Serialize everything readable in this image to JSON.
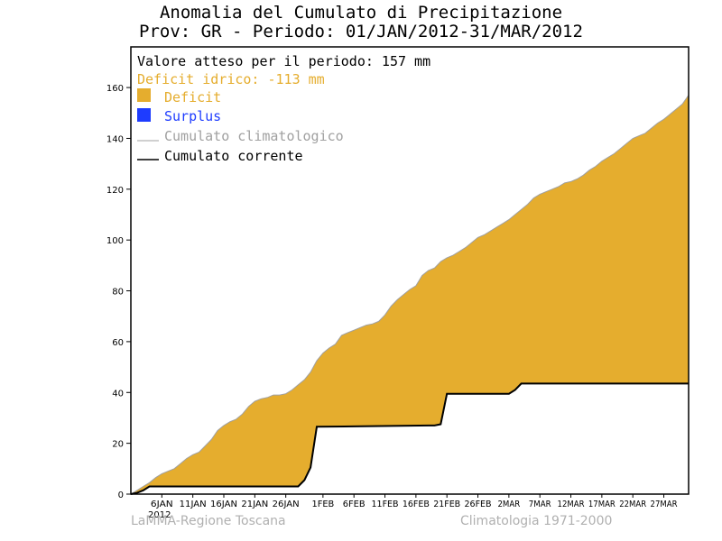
{
  "chart_data": {
    "type": "area",
    "title": "Anomalia del Cumulato di Precipitazione",
    "subtitle": "Prov: GR - Periodo: 01/JAN/2012-31/MAR/2012",
    "ylim": [
      0,
      176
    ],
    "yticks": [
      0,
      20,
      40,
      60,
      80,
      100,
      120,
      140,
      160
    ],
    "xlim": [
      1,
      91
    ],
    "xticks": [
      {
        "day": 6,
        "label": "6JAN"
      },
      {
        "day": 11,
        "label": "11JAN"
      },
      {
        "day": 16,
        "label": "16JAN"
      },
      {
        "day": 21,
        "label": "21JAN"
      },
      {
        "day": 26,
        "label": "26JAN"
      },
      {
        "day": 32,
        "label": "1FEB"
      },
      {
        "day": 37,
        "label": "6FEB"
      },
      {
        "day": 42,
        "label": "11FEB"
      },
      {
        "day": 47,
        "label": "16FEB"
      },
      {
        "day": 52,
        "label": "21FEB"
      },
      {
        "day": 57,
        "label": "26FEB"
      },
      {
        "day": 62,
        "label": "2MAR"
      },
      {
        "day": 67,
        "label": "7MAR"
      },
      {
        "day": 72,
        "label": "12MAR"
      },
      {
        "day": 77,
        "label": "17MAR"
      },
      {
        "day": 82,
        "label": "22MAR"
      },
      {
        "day": 87,
        "label": "27MAR"
      }
    ],
    "year_label": "2012",
    "legend": {
      "expected": "Valore atteso per il periodo: 157 mm",
      "deficit": "Deficit idrico: -113 mm",
      "deficit_label": "Deficit",
      "surplus_label": "Surplus",
      "climatological_label": "Cumulato climatologico",
      "current_label": "Cumulato corrente",
      "placement": "top-left"
    },
    "colors": {
      "deficit": "#e5ad2e",
      "deficit_text": "#e5ad2e",
      "surplus": "#1e3cff",
      "surplus_text": "#1e3cff",
      "climatological": "#a0a0a0",
      "current": "#000000",
      "muted_text": "#b0b0b0"
    },
    "series": [
      {
        "name": "Cumulato climatologico",
        "x": [
          1,
          2,
          3,
          4,
          5,
          6,
          7,
          8,
          9,
          10,
          11,
          12,
          13,
          14,
          15,
          16,
          17,
          18,
          19,
          20,
          21,
          22,
          23,
          24,
          25,
          26,
          27,
          28,
          29,
          30,
          31,
          32,
          33,
          34,
          35,
          36,
          37,
          38,
          39,
          40,
          41,
          42,
          43,
          44,
          45,
          46,
          47,
          48,
          49,
          50,
          51,
          52,
          53,
          54,
          55,
          56,
          57,
          58,
          59,
          60,
          61,
          62,
          63,
          64,
          65,
          66,
          67,
          68,
          69,
          70,
          71,
          72,
          73,
          74,
          75,
          76,
          77,
          78,
          79,
          80,
          81,
          82,
          83,
          84,
          85,
          86,
          87,
          88,
          89,
          90,
          91
        ],
        "values": [
          0,
          1.5,
          3,
          4.5,
          6.5,
          8,
          9,
          10,
          12,
          14,
          15.5,
          16.5,
          19,
          21.5,
          25,
          27,
          28.5,
          29.5,
          31.5,
          34.5,
          36.5,
          37.5,
          38,
          39,
          39,
          39.5,
          41,
          43,
          45,
          48,
          52.5,
          55.5,
          57.5,
          59,
          62.5,
          63.5,
          64.5,
          65.5,
          66.5,
          67,
          68,
          70.5,
          74,
          76.5,
          78.5,
          80.5,
          82,
          86,
          88,
          89,
          91.5,
          93,
          94,
          95.5,
          97,
          99,
          101,
          102,
          103.5,
          105,
          106.5,
          108,
          110,
          112,
          114,
          116.5,
          118,
          119,
          120,
          121,
          122.5,
          123,
          124,
          125.5,
          127.5,
          129,
          131,
          132.5,
          134,
          136,
          138,
          140,
          141,
          142,
          144,
          146,
          147.5,
          149.5,
          151.5,
          153.5,
          157
        ]
      },
      {
        "name": "Cumulato corrente",
        "x": [
          1,
          2,
          3,
          4,
          28,
          29,
          30,
          31,
          49,
          50,
          51,
          52,
          62,
          63,
          64,
          91
        ],
        "values": [
          0,
          0.5,
          1.5,
          3,
          3,
          5.5,
          10.5,
          26.5,
          27,
          27,
          27.5,
          39.5,
          39.5,
          41,
          43.5,
          43.5
        ]
      }
    ]
  },
  "footer": {
    "left": "LaMMA-Regione Toscana",
    "right": "Climatologia 1971-2000"
  }
}
